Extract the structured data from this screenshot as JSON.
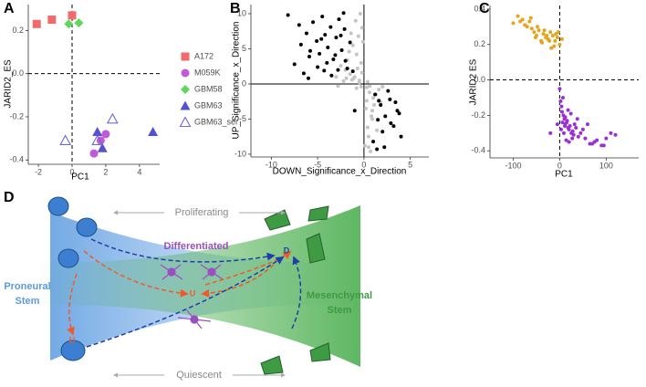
{
  "chart_data": [
    {
      "type": "scatter",
      "panel_label": "A",
      "x_label": "PC1",
      "y_label": "JARID2_ES",
      "xlim": [
        -2.6,
        5.2
      ],
      "ylim": [
        -0.42,
        0.32
      ],
      "xticks": [
        -2,
        0,
        2,
        4
      ],
      "yticks": [
        -0.4,
        -0.2,
        {
          "value": 0,
          "label": "0.0"
        },
        0.2
      ],
      "reference_lines": {
        "x": 0,
        "y": 0,
        "style": "dashed"
      },
      "legend": "right",
      "series": [
        {
          "name": "A172",
          "color": "#f06b6b",
          "marker": "square",
          "x": [
            -2.1,
            -1.2,
            0
          ],
          "values": [
            0.23,
            0.25,
            0.27
          ]
        },
        {
          "name": "M059K",
          "color": "#c05ad8",
          "marker": "circle",
          "x": [
            1.3,
            1.7,
            2.0
          ],
          "values": [
            -0.37,
            -0.31,
            -0.28
          ]
        },
        {
          "name": "GBM58",
          "color": "#5fd65f",
          "marker": "diamond",
          "x": [
            -0.2,
            0.4
          ],
          "values": [
            0.23,
            0.235
          ]
        },
        {
          "name": "GBM63",
          "color": "#5252d6",
          "marker": "triangle",
          "x": [
            1.5,
            1.8,
            4.8
          ],
          "values": [
            -0.27,
            -0.345,
            -0.27
          ]
        },
        {
          "name": "GBM63_ser",
          "color": "#6b6bd6",
          "marker": "triangle-open",
          "x": [
            -0.4,
            2.4,
            1.5
          ],
          "values": [
            -0.31,
            -0.21,
            -0.31
          ]
        }
      ]
    },
    {
      "type": "scatter",
      "panel_label": "B",
      "x_label": "DOWN_Significance_x_Direction",
      "y_label": "UP_Significance_x_Direction",
      "xlim": [
        -12.2,
        7
      ],
      "ylim": [
        -10.4,
        11.3
      ],
      "xticks": [
        -10,
        -5,
        0,
        5
      ],
      "yticks": [
        -10,
        -5,
        0,
        5,
        10
      ],
      "reference_lines": {
        "x": 0,
        "y": 0,
        "style": "solid"
      },
      "series": [
        {
          "color": "#c4c4c4",
          "marker": "dot",
          "x": [
            -0.5,
            -1.0,
            -1.5,
            -2.0,
            -0.3,
            -0.8,
            -1.2,
            -2.5,
            -0.6,
            -1.8,
            -0.2,
            -1.4,
            -0.9,
            -3.0,
            -0.4,
            -1.1,
            -2.2,
            -0.7,
            -1.6,
            -0.1,
            0.3,
            0.6,
            1.0,
            0.2,
            0.8,
            1.3,
            0.4,
            1.6,
            0.5,
            0.9,
            0.1,
            1.1,
            0.7,
            2.0,
            0.3,
            1.4,
            0.6,
            -0.5,
            -0.3,
            0.4,
            -0.8,
            0.5,
            -1.3,
            -2.8,
            -1.9,
            0.9,
            1.8,
            -0.2
          ],
          "values": [
            0.5,
            1.0,
            1.4,
            2.0,
            3.0,
            4.2,
            5.5,
            2.6,
            6.8,
            3.4,
            8.0,
            7.2,
            9.0,
            1.0,
            10.0,
            0.8,
            0.4,
            2.2,
            4.6,
            6.0,
            -0.5,
            -1.2,
            -2.0,
            -3.5,
            -4.6,
            -1.5,
            -6.2,
            -0.8,
            -7.5,
            -5.0,
            -8.8,
            -3.0,
            -9.6,
            -0.4,
            -2.4,
            -6.6,
            -0.3,
            0.2,
            -0.4,
            0.3,
            -0.6,
            -9.0,
            0.6,
            -0.3,
            0.8,
            -3.8,
            -2.6,
            1.6
          ]
        },
        {
          "color": "#000000",
          "marker": "dot",
          "x": [
            -7.5,
            -6.8,
            -6.2,
            -5.9,
            -5.5,
            -5.1,
            -4.8,
            -4.5,
            -4.2,
            -3.9,
            -3.6,
            -3.3,
            -3.0,
            -2.7,
            -2.4,
            -2.1,
            -1.8,
            -1.5,
            -6.5,
            -5.0,
            -4.0,
            -3.5,
            -2.8,
            -2.0,
            -1.2,
            -7.0,
            -4.6,
            -3.1,
            -2.5,
            -5.8,
            -4.3,
            -8.2,
            -6.0,
            -2.2,
            1.2,
            1.8,
            2.3,
            2.8,
            3.2,
            3.6,
            4.0,
            2.0,
            1.5,
            2.6,
            3.4,
            1.0,
            3.8,
            2.2,
            2.9,
            1.6,
            -1.0,
            1.4
          ],
          "values": [
            2.8,
            5.6,
            7.2,
            3.9,
            8.8,
            6.1,
            4.3,
            9.6,
            7.0,
            5.2,
            8.1,
            3.5,
            6.6,
            9.2,
            4.8,
            7.8,
            2.2,
            5.9,
            1.5,
            2.4,
            3.0,
            1.2,
            2.0,
            3.3,
            1.8,
            8.4,
            6.4,
            4.1,
            6.9,
            4.7,
            1.9,
            9.8,
            0.8,
            10.1,
            -1.5,
            -3.0,
            -4.6,
            -2.2,
            -6.0,
            -3.8,
            -7.5,
            -6.8,
            -5.1,
            -1.0,
            -2.6,
            -8.2,
            -4.2,
            -9.0,
            -5.6,
            -2.4,
            -3.8,
            -9.3
          ]
        }
      ]
    },
    {
      "type": "scatter",
      "panel_label": "C",
      "x_label": "PC1",
      "y_label": "JARID2 ES",
      "xlim": [
        -150,
        170
      ],
      "ylim": [
        -0.44,
        0.42
      ],
      "xticks": [
        -100,
        0,
        100
      ],
      "yticks": [
        -0.4,
        -0.2,
        {
          "value": 0,
          "label": "0.0"
        },
        0.2,
        0.4
      ],
      "reference_lines": {
        "x": 0,
        "y": 0,
        "style": "dashed"
      },
      "series": [
        {
          "color": "#e6a41e",
          "marker": "dot",
          "x": [
            -100,
            -90,
            -85,
            -80,
            -75,
            -70,
            -65,
            -60,
            -55,
            -50,
            -45,
            -40,
            -35,
            -30,
            -25,
            -20,
            -15,
            -10,
            -5,
            0,
            5,
            -62,
            -48,
            -38,
            -28,
            -18,
            -8,
            -52,
            -33,
            -22,
            -12,
            -3
          ],
          "values": [
            0.32,
            0.36,
            0.33,
            0.34,
            0.31,
            0.3,
            0.33,
            0.29,
            0.27,
            0.25,
            0.28,
            0.22,
            0.26,
            0.24,
            0.23,
            0.27,
            0.25,
            0.22,
            0.24,
            0.2,
            0.23,
            0.35,
            0.3,
            0.21,
            0.25,
            0.18,
            0.26,
            0.24,
            0.28,
            0.22,
            0.19,
            0.27
          ]
        },
        {
          "color": "#9a2fd6",
          "marker": "dot",
          "x": [
            0,
            2,
            5,
            8,
            10,
            12,
            15,
            18,
            20,
            22,
            25,
            28,
            30,
            35,
            40,
            45,
            50,
            55,
            60,
            70,
            80,
            90,
            100,
            110,
            120,
            4,
            7,
            12,
            16,
            24,
            32,
            38,
            3,
            9,
            14,
            20,
            27,
            6,
            11,
            18,
            -20,
            -5,
            65,
            75,
            95
          ],
          "values": [
            -0.05,
            -0.12,
            -0.18,
            -0.2,
            -0.22,
            -0.25,
            -0.24,
            -0.27,
            -0.28,
            -0.26,
            -0.3,
            -0.29,
            -0.31,
            -0.27,
            -0.32,
            -0.3,
            -0.28,
            -0.33,
            -0.25,
            -0.36,
            -0.34,
            -0.37,
            -0.33,
            -0.3,
            -0.31,
            -0.15,
            -0.1,
            -0.21,
            -0.23,
            -0.19,
            -0.25,
            -0.22,
            -0.28,
            -0.3,
            -0.34,
            -0.35,
            -0.33,
            -0.24,
            -0.26,
            -0.17,
            -0.3,
            -0.25,
            -0.36,
            -0.35,
            -0.37
          ]
        }
      ]
    }
  ],
  "diagram": {
    "panel_label": "D",
    "top_label": "Proliferating",
    "bottom_label": "Quiescent",
    "center_label": "Differentiated",
    "left_label": [
      "Proneural",
      "Stem"
    ],
    "right_label": [
      "Mesenchymal",
      "Stem"
    ],
    "state_labels": [
      "U",
      "U",
      "D"
    ]
  }
}
